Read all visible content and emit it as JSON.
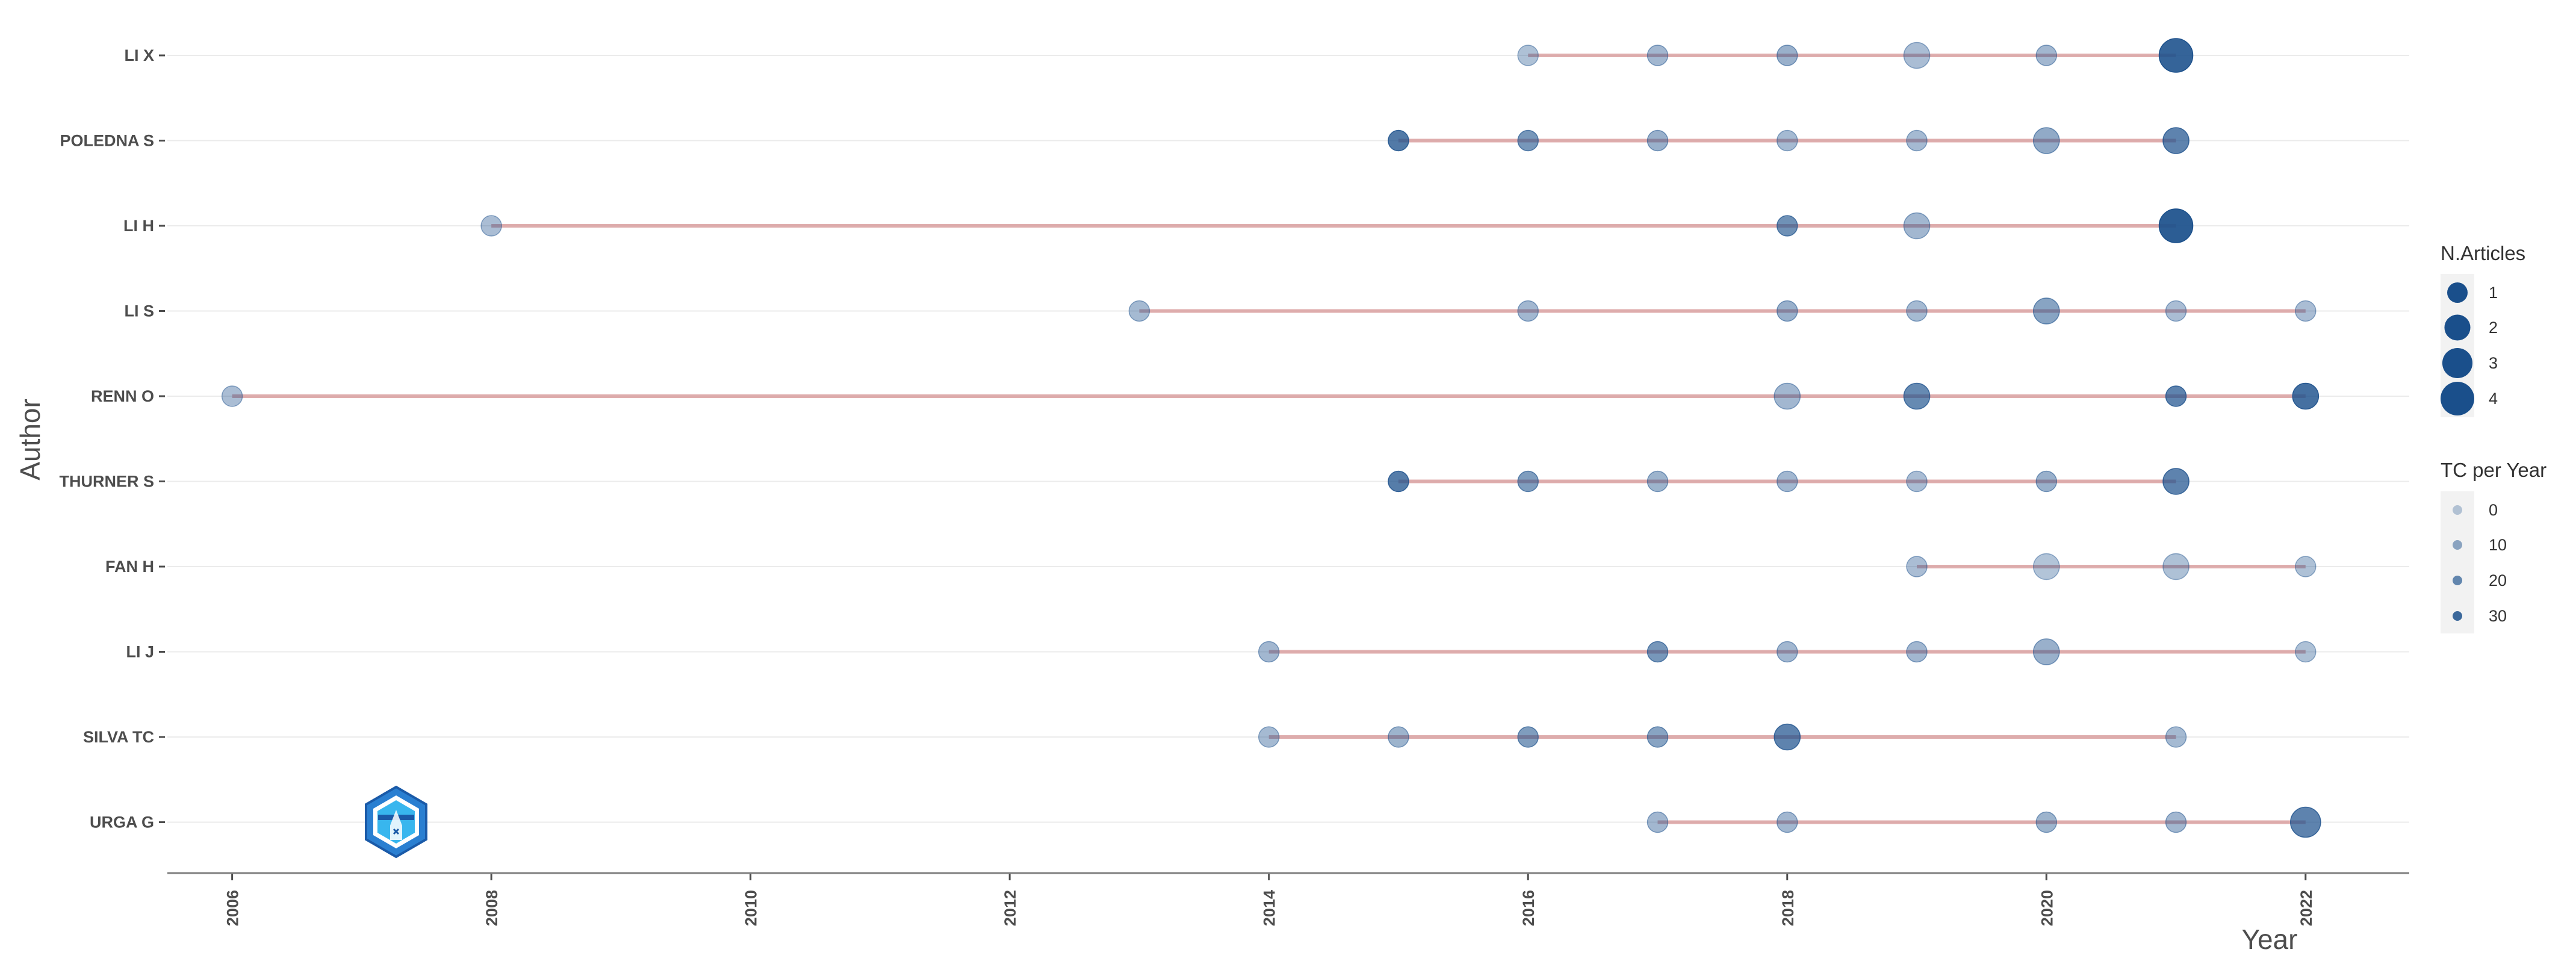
{
  "chart_data": {
    "type": "scatter",
    "title": "",
    "xlabel": "Year",
    "ylabel": "Author",
    "xlim": [
      2005.5,
      2022.8
    ],
    "x_ticks": [
      2006,
      2008,
      2010,
      2012,
      2014,
      2016,
      2018,
      2020,
      2022
    ],
    "authors": [
      "LI X",
      "POLEDNA S",
      "LI H",
      "LI S",
      "RENN O",
      "THURNER S",
      "FAN H",
      "LI J",
      "SILVA TC",
      "URGA G"
    ],
    "grid": "horizontal",
    "legend_position": "right",
    "colors": {
      "point": "#1a4f8b",
      "line": "#d9a0a0",
      "grid": "#ebebeb",
      "axis": "#7f7f7f"
    },
    "size_legend": {
      "title": "N.Articles",
      "values": [
        1,
        2,
        3,
        4
      ]
    },
    "alpha_legend": {
      "title": "TC per Year",
      "values": [
        0,
        10,
        20,
        30
      ]
    },
    "series": [
      {
        "name": "LI X",
        "points": [
          {
            "year": 2016,
            "n": 1,
            "tc": 3
          },
          {
            "year": 2017,
            "n": 1,
            "tc": 6
          },
          {
            "year": 2018,
            "n": 1,
            "tc": 8
          },
          {
            "year": 2019,
            "n": 2,
            "tc": 4
          },
          {
            "year": 2020,
            "n": 1,
            "tc": 6
          },
          {
            "year": 2021,
            "n": 4,
            "tc": 32
          }
        ]
      },
      {
        "name": "POLEDNA S",
        "points": [
          {
            "year": 2015,
            "n": 1,
            "tc": 25
          },
          {
            "year": 2016,
            "n": 1,
            "tc": 16
          },
          {
            "year": 2017,
            "n": 1,
            "tc": 8
          },
          {
            "year": 2018,
            "n": 1,
            "tc": 5
          },
          {
            "year": 2019,
            "n": 1,
            "tc": 5
          },
          {
            "year": 2020,
            "n": 2,
            "tc": 10
          },
          {
            "year": 2021,
            "n": 2,
            "tc": 22
          }
        ]
      },
      {
        "name": "LI H",
        "points": [
          {
            "year": 2008,
            "n": 1,
            "tc": 4
          },
          {
            "year": 2018,
            "n": 1,
            "tc": 18
          },
          {
            "year": 2019,
            "n": 2,
            "tc": 6
          },
          {
            "year": 2021,
            "n": 4,
            "tc": 34
          }
        ]
      },
      {
        "name": "LI S",
        "points": [
          {
            "year": 2013,
            "n": 1,
            "tc": 5
          },
          {
            "year": 2016,
            "n": 1,
            "tc": 6
          },
          {
            "year": 2018,
            "n": 1,
            "tc": 8
          },
          {
            "year": 2019,
            "n": 1,
            "tc": 5
          },
          {
            "year": 2020,
            "n": 2,
            "tc": 12
          },
          {
            "year": 2021,
            "n": 1,
            "tc": 4
          },
          {
            "year": 2022,
            "n": 1,
            "tc": 4
          }
        ]
      },
      {
        "name": "RENN O",
        "points": [
          {
            "year": 2006,
            "n": 1,
            "tc": 4
          },
          {
            "year": 2018,
            "n": 2,
            "tc": 6
          },
          {
            "year": 2019,
            "n": 2,
            "tc": 20
          },
          {
            "year": 2021,
            "n": 1,
            "tc": 22
          },
          {
            "year": 2022,
            "n": 2,
            "tc": 28
          }
        ]
      },
      {
        "name": "THURNER S",
        "points": [
          {
            "year": 2015,
            "n": 1,
            "tc": 24
          },
          {
            "year": 2016,
            "n": 1,
            "tc": 14
          },
          {
            "year": 2017,
            "n": 1,
            "tc": 7
          },
          {
            "year": 2018,
            "n": 1,
            "tc": 6
          },
          {
            "year": 2019,
            "n": 1,
            "tc": 4
          },
          {
            "year": 2020,
            "n": 1,
            "tc": 8
          },
          {
            "year": 2021,
            "n": 2,
            "tc": 22
          }
        ]
      },
      {
        "name": "FAN H",
        "points": [
          {
            "year": 2019,
            "n": 1,
            "tc": 4
          },
          {
            "year": 2020,
            "n": 2,
            "tc": 2
          },
          {
            "year": 2021,
            "n": 2,
            "tc": 3
          },
          {
            "year": 2022,
            "n": 1,
            "tc": 3
          }
        ]
      },
      {
        "name": "LI J",
        "points": [
          {
            "year": 2014,
            "n": 1,
            "tc": 6
          },
          {
            "year": 2017,
            "n": 1,
            "tc": 16
          },
          {
            "year": 2018,
            "n": 1,
            "tc": 6
          },
          {
            "year": 2019,
            "n": 1,
            "tc": 6
          },
          {
            "year": 2020,
            "n": 2,
            "tc": 8
          },
          {
            "year": 2022,
            "n": 1,
            "tc": 3
          }
        ]
      },
      {
        "name": "SILVA TC",
        "points": [
          {
            "year": 2014,
            "n": 1,
            "tc": 5
          },
          {
            "year": 2015,
            "n": 1,
            "tc": 7
          },
          {
            "year": 2016,
            "n": 1,
            "tc": 14
          },
          {
            "year": 2017,
            "n": 1,
            "tc": 12
          },
          {
            "year": 2018,
            "n": 2,
            "tc": 22
          },
          {
            "year": 2021,
            "n": 1,
            "tc": 5
          }
        ]
      },
      {
        "name": "URGA G",
        "points": [
          {
            "year": 2017,
            "n": 1,
            "tc": 6
          },
          {
            "year": 2018,
            "n": 1,
            "tc": 6
          },
          {
            "year": 2020,
            "n": 1,
            "tc": 7
          },
          {
            "year": 2021,
            "n": 1,
            "tc": 6
          },
          {
            "year": 2022,
            "n": 3,
            "tc": 22
          }
        ]
      }
    ]
  }
}
